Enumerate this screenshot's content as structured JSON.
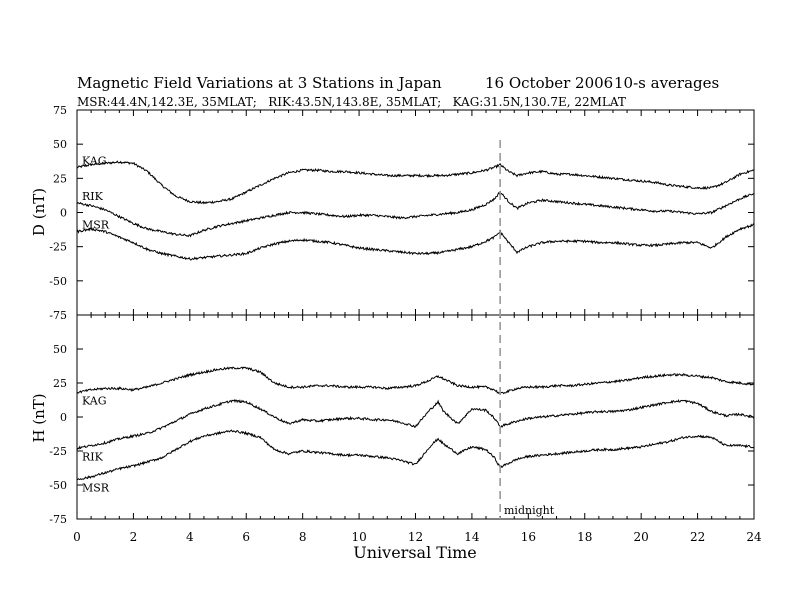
{
  "header": {
    "title": "Magnetic Field Variations at 3 Stations in Japan",
    "date": "16 October 2006",
    "averaging": "10-s averages",
    "stations": "MSR:44.4N,142.3E, 35MLAT;   RIK:43.5N,143.8E, 35MLAT;   KAG:31.5N,130.7E, 22MLAT"
  },
  "chart_data": {
    "type": "line",
    "xlabel": "Universal Time",
    "xlim": [
      0,
      24
    ],
    "xticks": [
      "0",
      "2",
      "4",
      "6",
      "8",
      "10",
      "12",
      "14",
      "16",
      "18",
      "20",
      "22",
      "24"
    ],
    "marker": {
      "x": 15,
      "label": "midnight",
      "style": "dashed",
      "color": "#999999"
    },
    "panels": [
      {
        "ylabel": "D (nT)",
        "ylim": [
          -75,
          75
        ],
        "yticks": [
          "75",
          "50",
          "25",
          "0",
          "-25",
          "-50",
          "-75"
        ],
        "series": [
          {
            "name": "KAG",
            "x": [
              0,
              0.5,
              1,
              1.5,
              2,
              2.5,
              3,
              3.5,
              4,
              4.5,
              5,
              5.5,
              6,
              6.5,
              7,
              7.5,
              8,
              8.5,
              9,
              9.5,
              10,
              10.5,
              11,
              11.5,
              12,
              12.5,
              13,
              13.5,
              14,
              14.5,
              14.8,
              15,
              15.3,
              15.6,
              16,
              16.5,
              17,
              17.5,
              18,
              18.5,
              19,
              19.5,
              20,
              20.5,
              21,
              21.5,
              22,
              22.5,
              23,
              23.5,
              24
            ],
            "y": [
              33,
              35,
              36,
              37,
              36,
              30,
              20,
              12,
              8,
              7,
              8,
              10,
              15,
              20,
              25,
              29,
              31,
              31,
              30,
              30,
              29,
              28,
              27,
              27,
              27,
              27,
              27,
              28,
              29,
              31,
              33,
              35,
              30,
              27,
              29,
              30,
              28,
              28,
              27,
              26,
              25,
              24,
              23,
              22,
              20,
              19,
              18,
              18,
              22,
              28,
              31
            ]
          },
          {
            "name": "RIK",
            "x": [
              0,
              0.5,
              1,
              1.5,
              2,
              2.5,
              3,
              3.5,
              4,
              4.5,
              5,
              5.5,
              6,
              6.5,
              7,
              7.5,
              8,
              8.5,
              9,
              9.5,
              10,
              10.5,
              11,
              11.5,
              12,
              12.5,
              13,
              13.5,
              14,
              14.5,
              14.8,
              15,
              15.3,
              15.6,
              16,
              16.5,
              17,
              17.5,
              18,
              18.5,
              19,
              19.5,
              20,
              20.5,
              21,
              21.5,
              22,
              22.5,
              23,
              23.5,
              24
            ],
            "y": [
              7,
              5,
              2,
              -3,
              -8,
              -12,
              -14,
              -16,
              -17,
              -13,
              -10,
              -8,
              -6,
              -4,
              -2,
              0,
              0,
              -1,
              -2,
              -3,
              -2,
              -2,
              -3,
              -4,
              -3,
              -2,
              -1,
              0,
              2,
              6,
              10,
              15,
              8,
              3,
              7,
              9,
              8,
              7,
              6,
              5,
              4,
              3,
              2,
              1,
              1,
              0,
              -1,
              0,
              5,
              10,
              14
            ]
          },
          {
            "name": "MSR",
            "x": [
              0,
              0.5,
              1,
              1.5,
              2,
              2.5,
              3,
              3.5,
              4,
              4.5,
              5,
              5.5,
              6,
              6.5,
              7,
              7.5,
              8,
              8.5,
              9,
              9.5,
              10,
              10.5,
              11,
              11.5,
              12,
              12.5,
              13,
              13.5,
              14,
              14.5,
              14.8,
              15,
              15.3,
              15.6,
              16,
              16.5,
              17,
              17.5,
              18,
              18.5,
              19,
              19.5,
              20,
              20.5,
              21,
              21.5,
              22,
              22.5,
              23,
              23.5,
              24
            ],
            "y": [
              -14,
              -12,
              -14,
              -18,
              -22,
              -27,
              -30,
              -32,
              -34,
              -33,
              -32,
              -31,
              -30,
              -26,
              -23,
              -21,
              -20,
              -21,
              -22,
              -24,
              -26,
              -27,
              -28,
              -29,
              -30,
              -30,
              -29,
              -27,
              -25,
              -21,
              -18,
              -14,
              -22,
              -29,
              -25,
              -22,
              -21,
              -21,
              -21,
              -22,
              -22,
              -23,
              -24,
              -24,
              -23,
              -22,
              -22,
              -26,
              -18,
              -12,
              -9
            ]
          }
        ]
      },
      {
        "ylabel": "H (nT)",
        "ylim": [
          -75,
          75
        ],
        "yticks": [
          "75",
          "50",
          "25",
          "0",
          "-25",
          "-50",
          "-75"
        ],
        "series": [
          {
            "name": "KAG",
            "x": [
              0,
              0.5,
              1,
              1.5,
              2,
              2.5,
              3,
              3.5,
              4,
              4.5,
              5,
              5.5,
              6,
              6.5,
              7,
              7.5,
              8,
              8.5,
              9,
              9.5,
              10,
              10.5,
              11,
              11.5,
              12,
              12.5,
              12.8,
              13,
              13.5,
              14,
              14.5,
              14.8,
              15,
              15.3,
              15.6,
              16,
              16.5,
              17,
              17.5,
              18,
              18.5,
              19,
              19.5,
              20,
              20.5,
              21,
              21.5,
              22,
              22.5,
              23,
              23.5,
              24
            ],
            "y": [
              18,
              20,
              21,
              21,
              20,
              22,
              25,
              28,
              31,
              33,
              35,
              36,
              36,
              33,
              25,
              22,
              22,
              23,
              23,
              22,
              22,
              22,
              21,
              22,
              23,
              27,
              30,
              28,
              23,
              22,
              22,
              20,
              17,
              19,
              21,
              22,
              22,
              23,
              23,
              24,
              25,
              26,
              27,
              29,
              30,
              31,
              31,
              30,
              29,
              26,
              25,
              24
            ]
          },
          {
            "name": "RIK",
            "x": [
              0,
              0.5,
              1,
              1.5,
              2,
              2.5,
              3,
              3.5,
              4,
              4.5,
              5,
              5.5,
              6,
              6.5,
              7,
              7.5,
              8,
              8.5,
              9,
              9.5,
              10,
              10.5,
              11,
              11.5,
              12,
              12.5,
              12.8,
              13,
              13.5,
              14,
              14.5,
              14.8,
              15,
              15.3,
              15.6,
              16,
              16.5,
              17,
              17.5,
              18,
              18.5,
              19,
              19.5,
              20,
              20.5,
              21,
              21.5,
              22,
              22.5,
              23,
              23.5,
              24
            ],
            "y": [
              -23,
              -21,
              -19,
              -16,
              -14,
              -12,
              -8,
              -3,
              2,
              6,
              9,
              12,
              11,
              6,
              0,
              -5,
              -2,
              -3,
              -2,
              -1,
              -1,
              -2,
              -2,
              -4,
              -7,
              5,
              11,
              4,
              -5,
              6,
              5,
              -1,
              -7,
              -5,
              -3,
              -1,
              0,
              1,
              2,
              3,
              4,
              4,
              5,
              7,
              9,
              11,
              12,
              10,
              4,
              1,
              2,
              0
            ]
          },
          {
            "name": "MSR",
            "x": [
              0,
              0.5,
              1,
              1.5,
              2,
              2.5,
              3,
              3.5,
              4,
              4.5,
              5,
              5.5,
              6,
              6.5,
              7,
              7.5,
              8,
              8.5,
              9,
              9.5,
              10,
              10.5,
              11,
              11.5,
              12,
              12.5,
              12.8,
              13,
              13.5,
              14,
              14.5,
              14.8,
              15,
              15.3,
              15.6,
              16,
              16.5,
              17,
              17.5,
              18,
              18.5,
              19,
              19.5,
              20,
              20.5,
              21,
              21.5,
              22,
              22.5,
              23,
              23.5,
              24
            ],
            "y": [
              -46,
              -44,
              -41,
              -38,
              -36,
              -33,
              -30,
              -24,
              -18,
              -14,
              -12,
              -10,
              -12,
              -15,
              -24,
              -27,
              -25,
              -26,
              -27,
              -28,
              -28,
              -29,
              -30,
              -32,
              -35,
              -22,
              -16,
              -20,
              -27,
              -22,
              -24,
              -30,
              -37,
              -34,
              -31,
              -29,
              -28,
              -27,
              -26,
              -25,
              -24,
              -24,
              -23,
              -22,
              -20,
              -18,
              -15,
              -14,
              -15,
              -21,
              -21,
              -22
            ]
          }
        ]
      }
    ]
  }
}
